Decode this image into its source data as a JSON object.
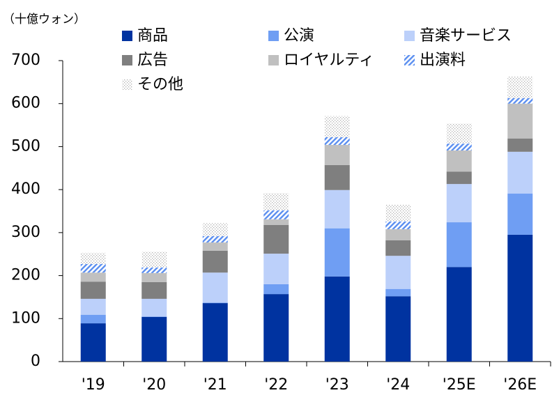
{
  "chart_data": {
    "type": "stacked-bar",
    "y_label": "（十億ウォン）",
    "categories": [
      "'19",
      "'20",
      "'21",
      "'22",
      "'23",
      "'24",
      "'25E",
      "'26E"
    ],
    "series": [
      {
        "name": "商品",
        "color": "#0033a0",
        "values": [
          89,
          104,
          136,
          157,
          198,
          152,
          220,
          295
        ]
      },
      {
        "name": "公演",
        "color": "#6f9ef3",
        "values": [
          20,
          1,
          1,
          23,
          112,
          17,
          104,
          96
        ]
      },
      {
        "name": "音楽サービス",
        "color": "#bcd0fa",
        "values": [
          37,
          41,
          70,
          71,
          89,
          77,
          89,
          97
        ]
      },
      {
        "name": "広告",
        "color": "#7f7f7f",
        "values": [
          40,
          39,
          51,
          67,
          58,
          36,
          29,
          31
        ]
      },
      {
        "name": "ロイヤルティ",
        "color": "#c0c0c0",
        "values": [
          21,
          21,
          19,
          13,
          47,
          26,
          49,
          81
        ]
      },
      {
        "name": "出演料",
        "color": "#5a8ef0",
        "pattern": "hatch",
        "values": [
          20,
          13,
          15,
          21,
          18,
          18,
          16,
          13
        ]
      },
      {
        "name": "その他",
        "color": "#b0b0b0",
        "pattern": "dots",
        "values": [
          26,
          37,
          30,
          40,
          49,
          39,
          47,
          50
        ]
      }
    ],
    "ylim": [
      0,
      700
    ],
    "yticks": [
      0,
      100,
      200,
      300,
      400,
      500,
      600,
      700
    ],
    "grid": false
  }
}
